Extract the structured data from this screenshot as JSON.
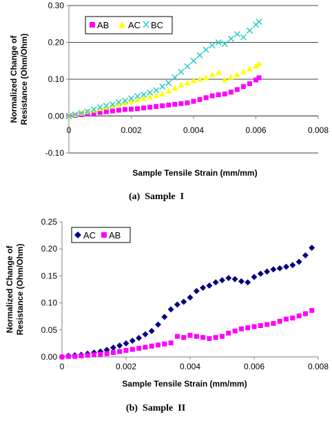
{
  "chart_data": [
    {
      "type": "scatter",
      "caption": "(a)  Sample  I",
      "xlabel": "Sample Tensile Strain (mm/mm)",
      "ylabel": [
        "Normalized Change of",
        "Resistance (Ohm/Ohm)"
      ],
      "xlim": [
        0,
        0.008
      ],
      "ylim": [
        -0.1,
        0.3
      ],
      "xticks": [
        "0",
        "0.002",
        "0.004",
        "0.006",
        "0.008"
      ],
      "xtick_values": [
        0,
        0.002,
        0.004,
        0.006,
        0.008
      ],
      "yticks": [
        "-0.10",
        "0.00",
        "0.10",
        "0.20",
        "0.30"
      ],
      "ytick_values": [
        -0.1,
        0,
        0.1,
        0.2,
        0.3
      ],
      "grid": "horizontal",
      "legend_position": "top-left",
      "series": [
        {
          "name": "AB",
          "marker": "square",
          "color": "#ff00ff",
          "x": [
            0.0,
            0.0002,
            0.0004,
            0.0006,
            0.0008,
            0.001,
            0.0012,
            0.0014,
            0.0016,
            0.0018,
            0.002,
            0.0022,
            0.0024,
            0.0026,
            0.0028,
            0.003,
            0.0032,
            0.0034,
            0.0036,
            0.0038,
            0.004,
            0.0042,
            0.0044,
            0.0046,
            0.0048,
            0.005,
            0.0052,
            0.0054,
            0.0056,
            0.0058,
            0.006,
            0.0061
          ],
          "y": [
            0.0,
            0.002,
            0.004,
            0.006,
            0.008,
            0.01,
            0.012,
            0.014,
            0.016,
            0.018,
            0.019,
            0.02,
            0.022,
            0.024,
            0.026,
            0.028,
            0.03,
            0.032,
            0.034,
            0.036,
            0.04,
            0.045,
            0.05,
            0.055,
            0.058,
            0.06,
            0.065,
            0.072,
            0.08,
            0.088,
            0.098,
            0.104
          ]
        },
        {
          "name": "AC",
          "marker": "triangle",
          "color": "#ffff00",
          "x": [
            0.0,
            0.0002,
            0.0004,
            0.0006,
            0.0008,
            0.001,
            0.0012,
            0.0014,
            0.0016,
            0.0018,
            0.002,
            0.0022,
            0.0024,
            0.0026,
            0.0028,
            0.003,
            0.0032,
            0.0034,
            0.0036,
            0.0038,
            0.004,
            0.0042,
            0.0044,
            0.0046,
            0.0048,
            0.005,
            0.0052,
            0.0054,
            0.0056,
            0.0058,
            0.006,
            0.0061
          ],
          "y": [
            0.0,
            0.004,
            0.008,
            0.012,
            0.016,
            0.02,
            0.024,
            0.028,
            0.032,
            0.036,
            0.04,
            0.044,
            0.048,
            0.052,
            0.056,
            0.06,
            0.068,
            0.076,
            0.084,
            0.09,
            0.096,
            0.1,
            0.104,
            0.112,
            0.118,
            0.098,
            0.106,
            0.112,
            0.12,
            0.128,
            0.136,
            0.142
          ]
        },
        {
          "name": "BC",
          "marker": "x",
          "color": "#33cccc",
          "x": [
            0.0,
            0.0002,
            0.0004,
            0.0006,
            0.0008,
            0.001,
            0.0012,
            0.0014,
            0.0016,
            0.0018,
            0.002,
            0.0022,
            0.0024,
            0.0026,
            0.0028,
            0.003,
            0.0032,
            0.0034,
            0.0036,
            0.0038,
            0.004,
            0.0042,
            0.0044,
            0.0046,
            0.0048,
            0.005,
            0.0052,
            0.0054,
            0.0056,
            0.0058,
            0.006,
            0.0061
          ],
          "y": [
            0.0,
            0.004,
            0.008,
            0.012,
            0.018,
            0.024,
            0.028,
            0.032,
            0.038,
            0.042,
            0.048,
            0.054,
            0.058,
            0.064,
            0.07,
            0.08,
            0.09,
            0.105,
            0.12,
            0.135,
            0.15,
            0.165,
            0.18,
            0.192,
            0.2,
            0.196,
            0.21,
            0.222,
            0.214,
            0.232,
            0.248,
            0.256
          ]
        }
      ]
    },
    {
      "type": "scatter",
      "caption": "(b)  Sample  II",
      "xlabel": "Sample Tensile Strain (mm/mm)",
      "ylabel": [
        "Normalized Change of",
        "Resistance (Ohm/Ohm)"
      ],
      "xlim": [
        0,
        0.008
      ],
      "ylim": [
        0,
        0.25
      ],
      "xticks": [
        "0",
        "0.002",
        "0.004",
        "0.006",
        "0.008"
      ],
      "xtick_values": [
        0,
        0.002,
        0.004,
        0.006,
        0.008
      ],
      "yticks": [
        "0.00",
        "0.05",
        "0.10",
        "0.15",
        "0.20",
        "0.25"
      ],
      "ytick_values": [
        0,
        0.05,
        0.1,
        0.15,
        0.2,
        0.25
      ],
      "grid": "none",
      "legend_position": "top-left",
      "series": [
        {
          "name": "AC",
          "marker": "diamond",
          "color": "#000080",
          "x": [
            0.0,
            0.0002,
            0.0004,
            0.0006,
            0.0008,
            0.001,
            0.0012,
            0.0014,
            0.0016,
            0.0018,
            0.002,
            0.0022,
            0.0024,
            0.0026,
            0.0028,
            0.003,
            0.0032,
            0.0034,
            0.0036,
            0.0038,
            0.004,
            0.0042,
            0.0044,
            0.0046,
            0.0048,
            0.005,
            0.0052,
            0.0054,
            0.0056,
            0.0058,
            0.006,
            0.0062,
            0.0064,
            0.0066,
            0.0068,
            0.007,
            0.0072,
            0.0074,
            0.0076,
            0.0078
          ],
          "y": [
            0.0,
            0.002,
            0.003,
            0.004,
            0.006,
            0.008,
            0.01,
            0.013,
            0.017,
            0.021,
            0.025,
            0.03,
            0.035,
            0.042,
            0.048,
            0.06,
            0.074,
            0.088,
            0.097,
            0.102,
            0.11,
            0.122,
            0.128,
            0.132,
            0.138,
            0.142,
            0.146,
            0.144,
            0.14,
            0.138,
            0.148,
            0.154,
            0.158,
            0.162,
            0.164,
            0.167,
            0.17,
            0.176,
            0.188,
            0.202
          ]
        },
        {
          "name": "AB",
          "marker": "square",
          "color": "#ff00ff",
          "x": [
            0.0,
            0.0002,
            0.0004,
            0.0006,
            0.0008,
            0.001,
            0.0012,
            0.0014,
            0.0016,
            0.0018,
            0.002,
            0.0022,
            0.0024,
            0.0026,
            0.0028,
            0.003,
            0.0032,
            0.0034,
            0.0036,
            0.0038,
            0.004,
            0.0042,
            0.0044,
            0.0046,
            0.0048,
            0.005,
            0.0052,
            0.0054,
            0.0056,
            0.0058,
            0.006,
            0.0062,
            0.0064,
            0.0066,
            0.0068,
            0.007,
            0.0072,
            0.0074,
            0.0076,
            0.0078
          ],
          "y": [
            0.0,
            0.001,
            0.001,
            0.002,
            0.003,
            0.004,
            0.005,
            0.006,
            0.008,
            0.01,
            0.012,
            0.014,
            0.016,
            0.018,
            0.02,
            0.022,
            0.024,
            0.026,
            0.038,
            0.036,
            0.04,
            0.038,
            0.036,
            0.034,
            0.036,
            0.038,
            0.044,
            0.048,
            0.052,
            0.054,
            0.056,
            0.058,
            0.06,
            0.062,
            0.066,
            0.07,
            0.072,
            0.076,
            0.08,
            0.086
          ]
        }
      ]
    }
  ]
}
